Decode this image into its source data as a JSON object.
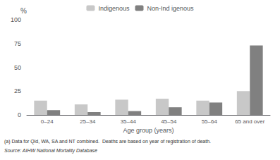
{
  "chart_data": {
    "type": "bar",
    "categories": [
      "0–24",
      "25–34",
      "35–44",
      "45–54",
      "55–64",
      "65 and over"
    ],
    "series": [
      {
        "name": "Indigenous",
        "color": "#c8c8c8",
        "values": [
          15,
          11,
          16,
          17,
          15,
          25
        ]
      },
      {
        "name": "Non-Ind igenous",
        "color": "#808080",
        "values": [
          5,
          3,
          4,
          8,
          13,
          73
        ]
      }
    ],
    "xlabel": "Age group (years)",
    "ylabel": "%",
    "ylim": [
      0,
      100
    ],
    "yticks": [
      0,
      25,
      50,
      75,
      100
    ],
    "grid": false,
    "legend": "top",
    "annotations": [
      "(a) Data for Qld, WA, SA and NT combined.  Deaths are based on year of registration of death.",
      "Source: AIHW National Mortality Database"
    ]
  }
}
